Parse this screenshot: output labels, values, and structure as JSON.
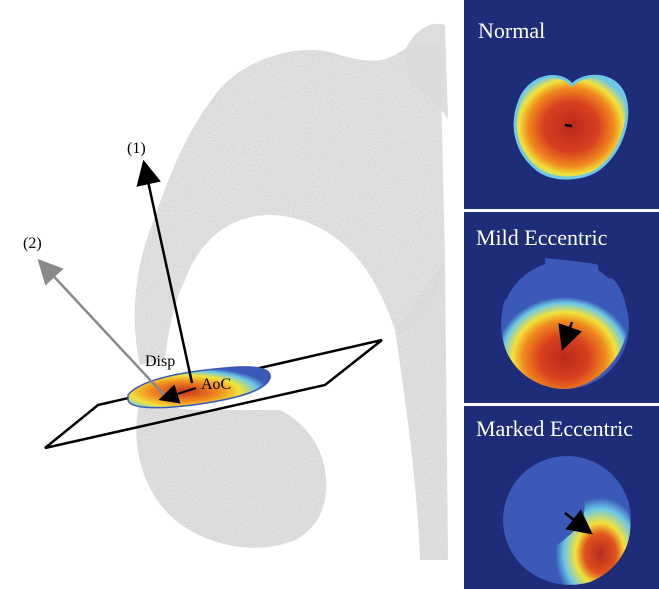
{
  "diagram": {
    "labels": {
      "vector1": "(1)",
      "vector2": "(2)",
      "disp": "Disp",
      "aoc": "AoC"
    }
  },
  "panels": [
    {
      "title": "Normal"
    },
    {
      "title": "Mild Eccentric"
    },
    {
      "title": "Marked Eccentric"
    }
  ],
  "colors": {
    "panel_background": "#1f2c7a",
    "heat_red": "#c8301c",
    "heat_orange": "#f08a1e",
    "heat_yellow": "#f2e23a",
    "heat_cyan": "#6cc8e6",
    "heat_blue": "#3a59b8",
    "vector2_gray": "#8a8a8a"
  }
}
